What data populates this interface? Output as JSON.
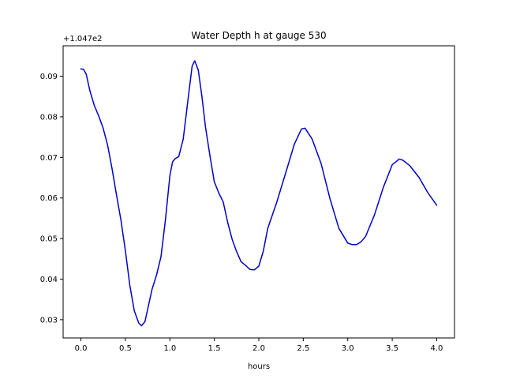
{
  "chart_data": {
    "type": "line",
    "title": "Water Depth h at gauge 530",
    "xlabel": "hours",
    "ylabel": "",
    "offset_text": "+1.047e2",
    "xlim": [
      -0.2,
      4.2
    ],
    "ylim": [
      0.0255,
      0.0975
    ],
    "xticks": [
      0.0,
      0.5,
      1.0,
      1.5,
      2.0,
      2.5,
      3.0,
      3.5,
      4.0
    ],
    "xtick_labels": [
      "0.0",
      "0.5",
      "1.0",
      "1.5",
      "2.0",
      "2.5",
      "3.0",
      "3.5",
      "4.0"
    ],
    "yticks": [
      0.03,
      0.04,
      0.05,
      0.06,
      0.07,
      0.08,
      0.09
    ],
    "ytick_labels": [
      "0.03",
      "0.04",
      "0.05",
      "0.06",
      "0.07",
      "0.08",
      "0.09"
    ],
    "grid": false,
    "line_color": "#0000cc",
    "series": [
      {
        "x": [
          0.0,
          0.03,
          0.06,
          0.1,
          0.15,
          0.2,
          0.25,
          0.3,
          0.35,
          0.4,
          0.45,
          0.5,
          0.55,
          0.6,
          0.65,
          0.68,
          0.72,
          0.76,
          0.8,
          0.85,
          0.9,
          0.95,
          1.0,
          1.03,
          1.06,
          1.1,
          1.15,
          1.2,
          1.25,
          1.28,
          1.32,
          1.36,
          1.4,
          1.45,
          1.5,
          1.55,
          1.6,
          1.65,
          1.7,
          1.75,
          1.8,
          1.85,
          1.9,
          1.95,
          2.0,
          2.05,
          2.1,
          2.2,
          2.3,
          2.4,
          2.48,
          2.52,
          2.6,
          2.7,
          2.8,
          2.9,
          3.0,
          3.05,
          3.1,
          3.15,
          3.2,
          3.3,
          3.4,
          3.5,
          3.58,
          3.62,
          3.7,
          3.8,
          3.9,
          4.0
        ],
        "y": [
          0.0918,
          0.0917,
          0.0905,
          0.0865,
          0.0828,
          0.0802,
          0.0772,
          0.073,
          0.0672,
          0.0608,
          0.0545,
          0.047,
          0.0385,
          0.0322,
          0.0292,
          0.0285,
          0.0295,
          0.0335,
          0.0375,
          0.041,
          0.0455,
          0.0545,
          0.0655,
          0.0689,
          0.0697,
          0.0702,
          0.0745,
          0.0835,
          0.0925,
          0.0938,
          0.0915,
          0.085,
          0.0775,
          0.0705,
          0.064,
          0.0612,
          0.059,
          0.054,
          0.0498,
          0.0468,
          0.0443,
          0.0434,
          0.0424,
          0.0423,
          0.0432,
          0.0468,
          0.0525,
          0.0588,
          0.066,
          0.0733,
          0.077,
          0.0772,
          0.0745,
          0.0685,
          0.0598,
          0.0525,
          0.0489,
          0.0485,
          0.0485,
          0.0492,
          0.0505,
          0.0558,
          0.0626,
          0.0682,
          0.0696,
          0.0693,
          0.0679,
          0.0651,
          0.0613,
          0.0582
        ]
      }
    ]
  }
}
